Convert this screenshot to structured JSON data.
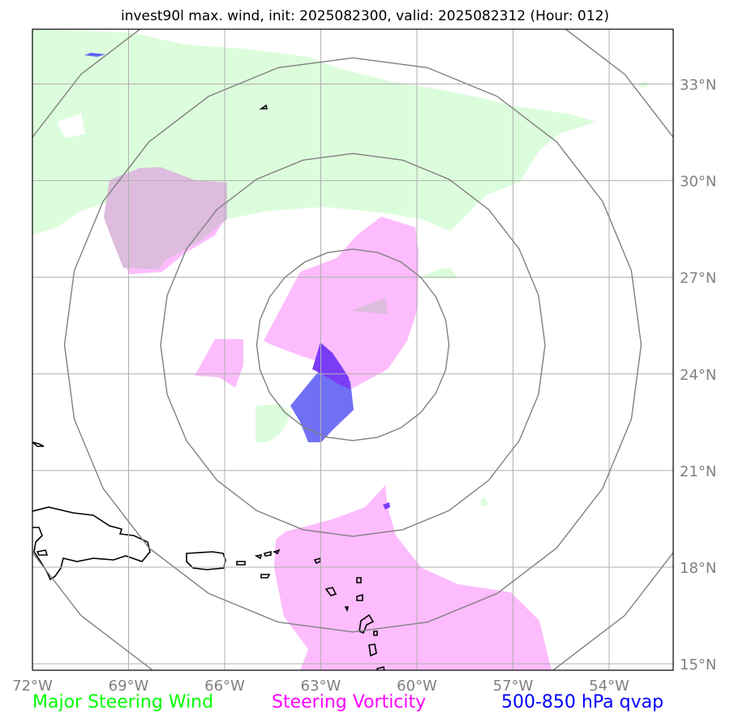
{
  "title": "invest90l max. wind, init: 2025082300, valid: 2025082312 (Hour: 012)",
  "map": {
    "lon_range": [
      -72,
      -52
    ],
    "lat_range": [
      14.8,
      34.7
    ],
    "lon_ticks": [
      {
        "value": -72,
        "label": "72°W"
      },
      {
        "value": -69,
        "label": "69°W"
      },
      {
        "value": -66,
        "label": "66°W"
      },
      {
        "value": -63,
        "label": "63°W"
      },
      {
        "value": -60,
        "label": "60°W"
      },
      {
        "value": -57,
        "label": "57°W"
      },
      {
        "value": -54,
        "label": "54°W"
      }
    ],
    "lat_ticks": [
      {
        "value": 33,
        "label": "33°N"
      },
      {
        "value": 30,
        "label": "30°N"
      },
      {
        "value": 27,
        "label": "27°N"
      },
      {
        "value": 24,
        "label": "24°N"
      },
      {
        "value": 21,
        "label": "21°N"
      },
      {
        "value": 18,
        "label": "18°N"
      },
      {
        "value": 15,
        "label": "15°N"
      }
    ],
    "storm_center": {
      "lon": -62.0,
      "lat": 24.9
    },
    "range_ring_radii_deg": [
      3,
      6,
      9,
      12
    ],
    "gridlines": true
  },
  "colors": {
    "major_steering_wind": "#00ff00",
    "steering_vorticity": "#ff00ff",
    "qvap": "#0000ff",
    "wind_fill": "#dcfddc",
    "vort_fill": "#fdbcfd",
    "overlap_fill": "#ddbcdd",
    "qvap_fill": "#7070f5",
    "qvap_core_fill": "#7a3cf5",
    "ring_color": "#808080",
    "grid_color": "#b0b0b0",
    "coast_color": "#000000"
  },
  "legend": {
    "wind": "Major Steering Wind",
    "vorticity": "Steering Vorticity",
    "qvap": "500-850 hPa qvap"
  }
}
